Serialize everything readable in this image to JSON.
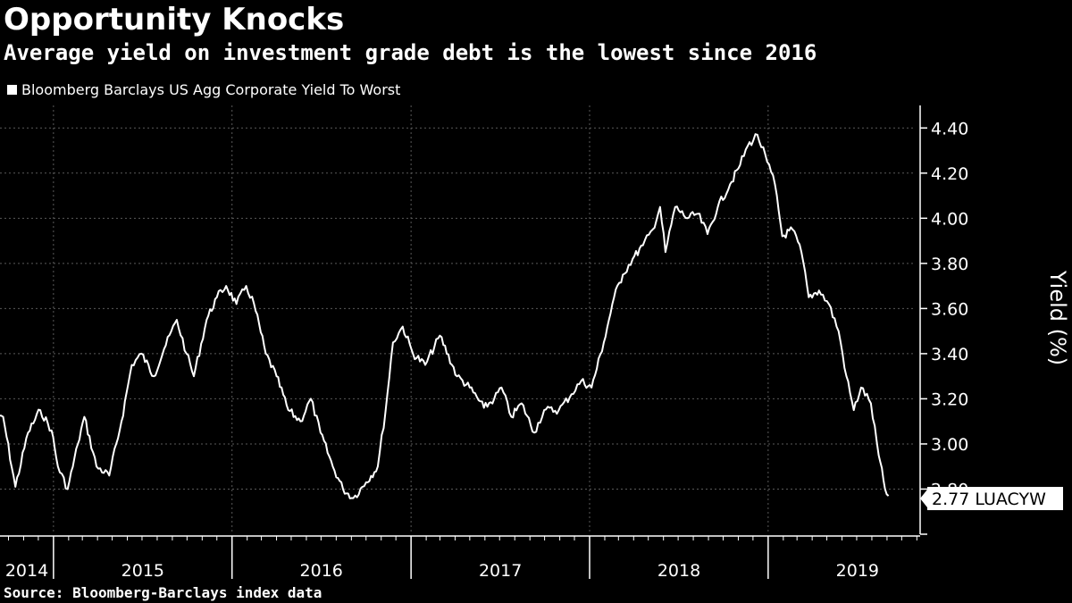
{
  "title": "Opportunity Knocks",
  "subtitle": "Average yield on investment grade debt is the lowest since 2016",
  "source": "Source: Bloomberg-Barclays index data",
  "chart_data": {
    "type": "line",
    "legend": "Bloomberg Barclays US Agg Corporate Yield To Worst",
    "ylabel": "Yield (%)",
    "ylim": [
      2.6,
      4.5
    ],
    "yticks": [
      "4.40",
      "4.20",
      "4.00",
      "3.80",
      "3.60",
      "3.40",
      "3.20",
      "3.00",
      "2.80"
    ],
    "xticks": [
      "2014",
      "2015",
      "2016",
      "2017",
      "2018",
      "2019"
    ],
    "last_value_label": "2.77 LUACYW",
    "grid": true,
    "series": [
      {
        "name": "Bloomberg Barclays US Agg Corporate Yield To Worst",
        "color": "#ffffff",
        "points": [
          [
            "2014-09-01",
            3.1
          ],
          [
            "2014-09-20",
            3.12
          ],
          [
            "2014-10-15",
            2.81
          ],
          [
            "2014-11-10",
            3.05
          ],
          [
            "2014-12-05",
            3.15
          ],
          [
            "2014-12-28",
            3.06
          ],
          [
            "2015-01-10",
            2.9
          ],
          [
            "2015-01-30",
            2.8
          ],
          [
            "2015-02-20",
            3.0
          ],
          [
            "2015-03-05",
            3.12
          ],
          [
            "2015-03-30",
            2.9
          ],
          [
            "2015-04-25",
            2.86
          ],
          [
            "2015-05-20",
            3.1
          ],
          [
            "2015-06-10",
            3.35
          ],
          [
            "2015-06-30",
            3.4
          ],
          [
            "2015-07-25",
            3.3
          ],
          [
            "2015-08-15",
            3.42
          ],
          [
            "2015-09-10",
            3.55
          ],
          [
            "2015-09-30",
            3.4
          ],
          [
            "2015-10-15",
            3.3
          ],
          [
            "2015-11-10",
            3.55
          ],
          [
            "2015-12-01",
            3.65
          ],
          [
            "2015-12-20",
            3.7
          ],
          [
            "2016-01-10",
            3.62
          ],
          [
            "2016-01-30",
            3.7
          ],
          [
            "2016-02-15",
            3.62
          ],
          [
            "2016-03-10",
            3.4
          ],
          [
            "2016-04-01",
            3.3
          ],
          [
            "2016-04-25",
            3.15
          ],
          [
            "2016-05-20",
            3.1
          ],
          [
            "2016-06-10",
            3.2
          ],
          [
            "2016-06-30",
            3.05
          ],
          [
            "2016-07-25",
            2.9
          ],
          [
            "2016-08-15",
            2.8
          ],
          [
            "2016-09-05",
            2.76
          ],
          [
            "2016-10-01",
            2.83
          ],
          [
            "2016-10-25",
            2.9
          ],
          [
            "2016-11-10",
            3.15
          ],
          [
            "2016-11-25",
            3.45
          ],
          [
            "2016-12-15",
            3.52
          ],
          [
            "2017-01-05",
            3.4
          ],
          [
            "2017-01-30",
            3.35
          ],
          [
            "2017-03-01",
            3.48
          ],
          [
            "2017-04-05",
            3.3
          ],
          [
            "2017-05-01",
            3.25
          ],
          [
            "2017-05-30",
            3.16
          ],
          [
            "2017-06-20",
            3.2
          ],
          [
            "2017-07-05",
            3.25
          ],
          [
            "2017-07-25",
            3.12
          ],
          [
            "2017-08-15",
            3.18
          ],
          [
            "2017-09-10",
            3.05
          ],
          [
            "2017-09-30",
            3.15
          ],
          [
            "2017-10-30",
            3.15
          ],
          [
            "2017-11-25",
            3.22
          ],
          [
            "2017-12-15",
            3.28
          ],
          [
            "2018-01-05",
            3.25
          ],
          [
            "2018-01-30",
            3.45
          ],
          [
            "2018-02-20",
            3.65
          ],
          [
            "2018-03-10",
            3.75
          ],
          [
            "2018-03-30",
            3.82
          ],
          [
            "2018-04-20",
            3.88
          ],
          [
            "2018-05-10",
            3.95
          ],
          [
            "2018-05-25",
            4.05
          ],
          [
            "2018-06-05",
            3.85
          ],
          [
            "2018-06-25",
            4.05
          ],
          [
            "2018-07-20",
            4.0
          ],
          [
            "2018-08-10",
            4.02
          ],
          [
            "2018-08-30",
            3.93
          ],
          [
            "2018-09-20",
            4.05
          ],
          [
            "2018-10-15",
            4.15
          ],
          [
            "2018-11-01",
            4.22
          ],
          [
            "2018-11-20",
            4.32
          ],
          [
            "2018-12-10",
            4.37
          ],
          [
            "2018-12-30",
            4.25
          ],
          [
            "2019-01-15",
            4.15
          ],
          [
            "2019-01-30",
            3.92
          ],
          [
            "2019-02-20",
            3.95
          ],
          [
            "2019-03-10",
            3.85
          ],
          [
            "2019-03-25",
            3.65
          ],
          [
            "2019-04-15",
            3.68
          ],
          [
            "2019-05-05",
            3.62
          ],
          [
            "2019-05-25",
            3.5
          ],
          [
            "2019-06-10",
            3.3
          ],
          [
            "2019-06-25",
            3.15
          ],
          [
            "2019-07-10",
            3.25
          ],
          [
            "2019-07-30",
            3.18
          ],
          [
            "2019-08-15",
            2.95
          ],
          [
            "2019-08-28",
            2.8
          ],
          [
            "2019-09-04",
            2.77
          ]
        ]
      }
    ]
  }
}
